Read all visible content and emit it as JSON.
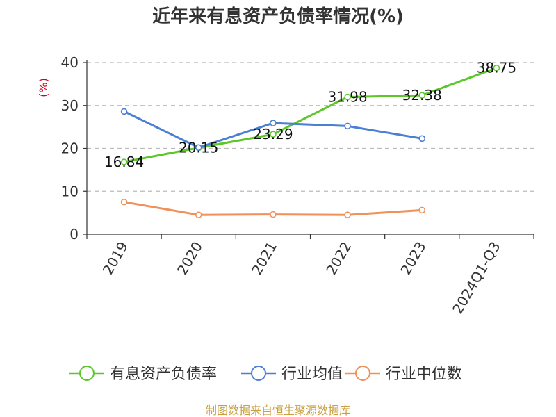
{
  "chart_data": {
    "type": "line",
    "title": "近年来有息资产负债率情况(%)",
    "ylabel": "(%)",
    "xlabel": "",
    "categories": [
      "2019",
      "2020",
      "2021",
      "2022",
      "2023",
      "2024Q1-Q3"
    ],
    "ylim": [
      0,
      40
    ],
    "yticks": [
      0,
      10,
      20,
      30,
      40
    ],
    "grid": true,
    "legend_position": "bottom",
    "series": [
      {
        "name": "有息资产负债率",
        "color": "#5cc72a",
        "values": [
          16.84,
          20.15,
          23.29,
          31.98,
          32.38,
          38.75
        ],
        "data_labels": [
          "16.84",
          "20.15",
          "23.29",
          "31.98",
          "32.38",
          "38.75"
        ]
      },
      {
        "name": "行业均值",
        "color": "#4a7fd6",
        "values": [
          28.6,
          20.2,
          25.9,
          25.2,
          22.3,
          null
        ]
      },
      {
        "name": "行业中位数",
        "color": "#f0915a",
        "values": [
          7.5,
          4.5,
          4.6,
          4.5,
          5.6,
          null
        ]
      }
    ]
  },
  "source": "制图数据来自恒生聚源数据库"
}
